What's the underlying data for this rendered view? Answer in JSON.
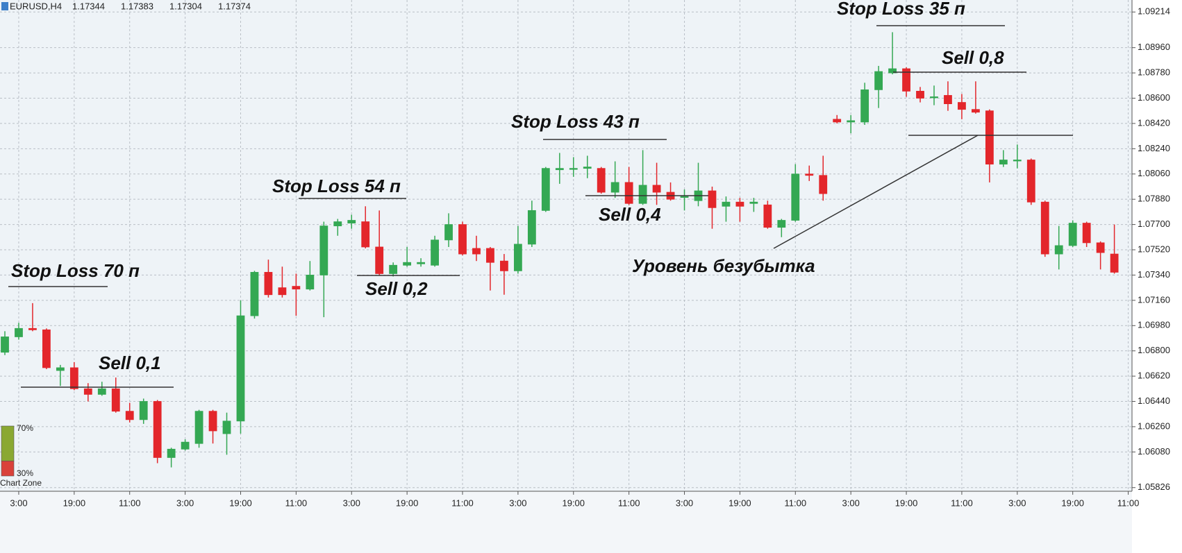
{
  "chart_data": {
    "type": "candlestick",
    "symbol": "EURUSD,H4",
    "quote": [
      1.17344,
      1.17383,
      1.17304,
      1.17374
    ],
    "categories": [
      null,
      "3:00",
      null,
      null,
      null,
      "19:00",
      null,
      null,
      null,
      "11:00",
      null,
      null,
      null,
      "3:00",
      null,
      null,
      null,
      "19:00",
      null,
      null,
      null,
      "11:00",
      null,
      null,
      null,
      "3:00",
      null,
      null,
      null,
      "19:00",
      null,
      null,
      null,
      "11:00",
      null,
      null,
      null,
      "3:00",
      null,
      null,
      null,
      "19:00",
      null,
      null,
      null,
      "11:00",
      null,
      null,
      null,
      "3:00",
      null,
      null,
      null,
      "19:00",
      null,
      null,
      null,
      "11:00",
      null,
      null,
      null,
      "3:00",
      null,
      null,
      null,
      "19:00",
      null,
      null,
      null,
      "11:00",
      null,
      null,
      null,
      "3:00",
      null,
      null,
      null,
      "19:00",
      null,
      null,
      null,
      "11:00"
    ],
    "open": [
      1.0679,
      1.069,
      1.0696,
      1.0695,
      1.0666,
      1.0668,
      1.0653,
      1.0649,
      1.0653,
      1.0637,
      1.0631,
      1.0644,
      1.0604,
      1.061,
      1.0614,
      1.0637,
      1.0621,
      1.063,
      1.0705,
      1.0736,
      1.0725,
      1.0726,
      1.0724,
      1.0734,
      1.0769,
      1.0771,
      1.0772,
      1.0754,
      1.0735,
      1.0741,
      1.0742,
      1.0741,
      1.0759,
      1.077,
      1.0753,
      1.0753,
      1.0744,
      1.0737,
      1.0756,
      1.078,
      1.0809,
      1.081,
      1.081,
      1.081,
      1.0793,
      1.08,
      1.0785,
      1.0798,
      1.0793,
      1.079,
      1.0787,
      1.0794,
      1.0783,
      1.0786,
      1.0785,
      1.0784,
      1.0768,
      1.0773,
      1.0806,
      1.0805,
      1.0845,
      1.0843,
      1.0843,
      1.0866,
      1.0878,
      1.0881,
      1.0865,
      1.0861,
      1.0862,
      1.0857,
      1.0852,
      1.0851,
      1.0813,
      1.0816,
      1.0816,
      1.0786,
      1.0749,
      1.0755,
      1.0771,
      1.0757,
      1.0749,
      null
    ],
    "high": [
      1.0694,
      1.07,
      1.0714,
      1.0696,
      1.067,
      1.0672,
      1.0657,
      1.0658,
      1.0661,
      1.0643,
      1.0646,
      1.0645,
      1.0611,
      1.0617,
      1.0638,
      1.0638,
      1.0636,
      1.0716,
      1.0737,
      1.0745,
      1.074,
      1.0735,
      1.0744,
      1.0772,
      1.0774,
      1.0777,
      1.0783,
      1.078,
      1.0743,
      1.0754,
      1.0746,
      1.0762,
      1.0778,
      1.0772,
      1.0762,
      1.0754,
      1.0749,
      1.0769,
      1.0787,
      1.0811,
      1.0821,
      1.0818,
      1.0819,
      1.0811,
      1.0815,
      1.0811,
      1.0823,
      1.0814,
      1.08,
      1.0795,
      1.0814,
      1.0797,
      1.079,
      1.0789,
      1.0789,
      1.0787,
      1.0774,
      1.0813,
      1.0812,
      1.0819,
      1.0848,
      1.0848,
      1.0871,
      1.0883,
      1.0907,
      1.0882,
      1.0868,
      1.0869,
      1.0872,
      1.0863,
      1.0872,
      1.0852,
      1.0823,
      1.0827,
      1.0817,
      1.0787,
      1.0769,
      1.0773,
      1.0772,
      1.0758,
      1.077,
      null
    ],
    "low": [
      1.0677,
      1.0688,
      1.0694,
      1.0667,
      1.0655,
      1.0652,
      1.0644,
      1.0648,
      1.0636,
      1.0629,
      1.0628,
      1.06,
      1.0597,
      1.0609,
      1.0611,
      1.0614,
      1.0606,
      1.0621,
      1.0703,
      1.0718,
      1.0718,
      1.0705,
      1.0723,
      1.0704,
      1.0762,
      1.0767,
      1.0753,
      1.0734,
      1.0733,
      1.074,
      1.074,
      1.074,
      1.0754,
      1.0748,
      1.0744,
      1.0723,
      1.072,
      1.0735,
      1.0754,
      1.0779,
      1.0799,
      1.0804,
      1.0803,
      1.0792,
      1.0789,
      1.0784,
      1.0784,
      1.0784,
      1.0787,
      1.078,
      1.0783,
      1.0767,
      1.0772,
      1.0772,
      1.0779,
      1.0767,
      1.0761,
      1.0772,
      1.0801,
      1.0787,
      1.0842,
      1.0835,
      1.0841,
      1.0853,
      1.0877,
      1.0861,
      1.0857,
      1.0855,
      1.0851,
      1.0845,
      1.0849,
      1.08,
      1.0811,
      1.081,
      1.0784,
      1.0747,
      1.0738,
      1.0754,
      1.0754,
      1.0738,
      1.0735,
      null
    ],
    "close": [
      1.069,
      1.0696,
      1.0695,
      1.0668,
      1.0668,
      1.0653,
      1.0649,
      1.0653,
      1.0637,
      1.0631,
      1.0644,
      1.0604,
      1.061,
      1.0615,
      1.0637,
      1.0623,
      1.063,
      1.0705,
      1.0736,
      1.072,
      1.072,
      1.0724,
      1.0734,
      1.0769,
      1.0772,
      1.0773,
      1.0754,
      1.0735,
      1.0741,
      1.0743,
      1.0743,
      1.0759,
      1.077,
      1.0749,
      1.0749,
      1.0743,
      1.0737,
      1.0756,
      1.078,
      1.081,
      1.081,
      1.081,
      1.0811,
      1.0793,
      1.08,
      1.0785,
      1.0798,
      1.0793,
      1.0788,
      1.079,
      1.0794,
      1.0782,
      1.0786,
      1.0783,
      1.0786,
      1.0768,
      1.0773,
      1.0806,
      1.0805,
      1.0792,
      1.0843,
      1.0844,
      1.0866,
      1.0879,
      1.0881,
      1.0865,
      1.086,
      1.0861,
      1.0856,
      1.0852,
      1.085,
      1.0813,
      1.0816,
      1.0816,
      1.0786,
      1.0749,
      1.0755,
      1.0771,
      1.0757,
      1.075,
      1.0736,
      null
    ],
    "up_color": "#34a853",
    "down_color": "#e3262b",
    "ylim": [
      1.058,
      1.0925
    ],
    "yticks": [
      1.09214,
      {
        "value": 1.0896,
        "label": "1.08960"
      },
      {
        "value": 1.0878,
        "label": "1.08780"
      },
      {
        "value": 1.086,
        "label": "1.08600"
      },
      {
        "value": 1.0842,
        "label": "1.08420"
      },
      {
        "value": 1.0824,
        "label": "1.08240"
      },
      {
        "value": 1.0806,
        "label": "1.08060"
      },
      {
        "value": 1.0788,
        "label": "1.07880"
      },
      {
        "value": 1.077,
        "label": "1.07700"
      },
      {
        "value": 1.0752,
        "label": "1.07520"
      },
      {
        "value": 1.0734,
        "label": "1.07340"
      },
      {
        "value": 1.0716,
        "label": "1.07160"
      },
      {
        "value": 1.0698,
        "label": "1.06980"
      },
      {
        "value": 1.068,
        "label": "1.06800"
      },
      {
        "value": 1.0662,
        "label": "1.06620"
      },
      {
        "value": 1.0644,
        "label": "1.06440"
      },
      {
        "value": 1.0626,
        "label": "1.06260"
      },
      {
        "value": 1.0608,
        "label": "1.06080"
      },
      1.05826
    ],
    "grid": true,
    "annotations": [
      "Stop Loss 70 п",
      "Sell 0,1",
      "Stop Loss 54 п",
      "Sell 0,2",
      "Stop Loss 43 п",
      "Sell 0,4",
      "Stop Loss 35 п",
      "Sell 0,8",
      "Уровень безубытка"
    ],
    "widget": {
      "title": "Chart Zone",
      "values": [
        70,
        30
      ],
      "value_labels": [
        "70%",
        "30%"
      ],
      "colors": [
        "#8aa832",
        "#d9413a"
      ]
    }
  }
}
